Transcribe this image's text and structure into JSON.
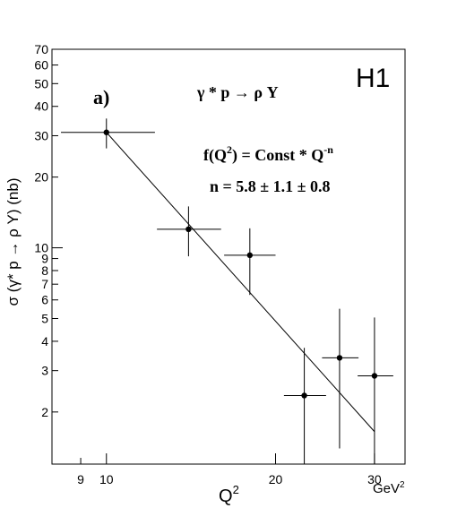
{
  "chart_data": {
    "type": "scatter",
    "panel_label": "a)",
    "experiment_label": "H1",
    "annotations": {
      "process": "γ * p → ρ Y",
      "fit_formula_base": "f(Q",
      "fit_formula_sup": "2",
      "fit_formula_mid": ") = Const * Q",
      "fit_formula_exp": "-n",
      "fit_result": "n  = 5.8 ± 1.1 ± 0.8"
    },
    "xlabel": "Q",
    "xlabel_sup": "2",
    "xunit": "GeV",
    "xunit_sup": "2",
    "ylabel": "σ (γ* p → ρ Y) (nb)",
    "xscale": "log",
    "yscale": "log",
    "xlim": [
      8,
      34
    ],
    "ylim": [
      1.2,
      70
    ],
    "xticks_labeled": [
      "9",
      "10",
      "20",
      "30"
    ],
    "xtick_values": [
      9,
      10,
      20,
      30
    ],
    "yticks_labeled": [
      "2",
      "3",
      "4",
      "5",
      "6",
      "7",
      "8",
      "9",
      "10",
      "20",
      "30",
      "40",
      "50",
      "60",
      "70"
    ],
    "ytick_values": [
      2,
      3,
      4,
      5,
      6,
      7,
      8,
      9,
      10,
      20,
      30,
      40,
      50,
      60,
      70
    ],
    "points": [
      {
        "x": 10.0,
        "y": 31.0,
        "xerr": [
          1.7,
          2.2
        ],
        "yerr": [
          4.5,
          4.5
        ]
      },
      {
        "x": 14.0,
        "y": 12.0,
        "xerr": [
          1.7,
          2.0
        ],
        "yerr": [
          2.8,
          3.0
        ]
      },
      {
        "x": 18.0,
        "y": 9.3,
        "xerr": [
          1.8,
          2.0
        ],
        "yerr": [
          3.0,
          2.8
        ]
      },
      {
        "x": 22.5,
        "y": 2.35,
        "xerr": [
          1.8,
          2.1
        ],
        "yerr": [
          1.2,
          1.4
        ]
      },
      {
        "x": 26.0,
        "y": 3.4,
        "xerr": [
          1.8,
          2.1
        ],
        "yerr": [
          2.0,
          2.1
        ]
      },
      {
        "x": 30.0,
        "y": 2.85,
        "xerr": [
          2.0,
          2.4
        ],
        "yerr": [
          1.7,
          2.2
        ]
      }
    ],
    "fit_line": {
      "x": [
        10,
        30
      ],
      "y": [
        31,
        1.65
      ]
    }
  }
}
